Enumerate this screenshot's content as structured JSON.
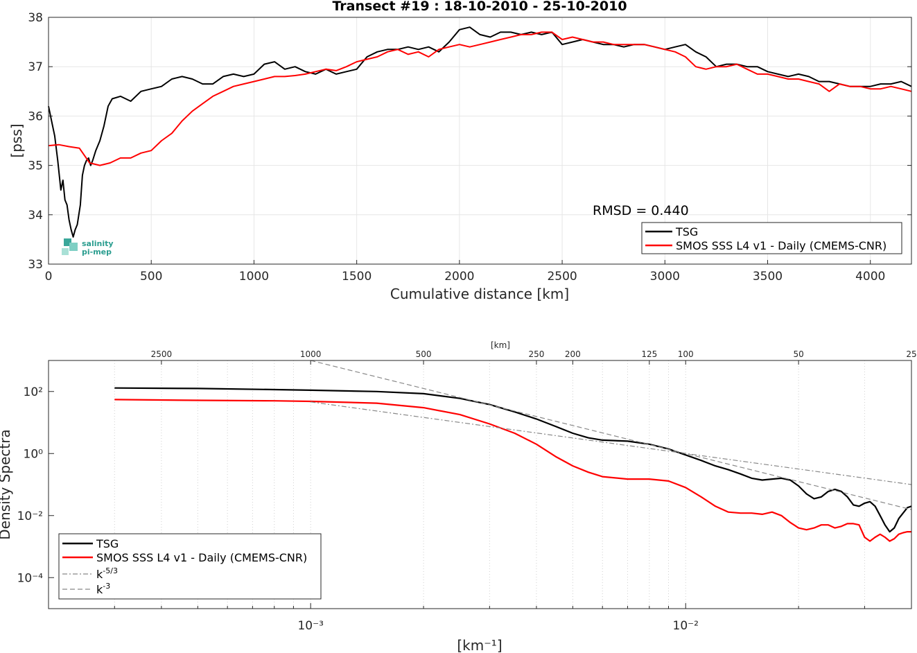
{
  "chart_data": [
    {
      "type": "line",
      "title": "Transect #19 : 18-10-2010 - 25-10-2010",
      "xlabel": "Cumulative distance [km]",
      "ylabel": "[pss]",
      "xlim": [
        0,
        4200
      ],
      "ylim": [
        33,
        38
      ],
      "xticks": [
        "0",
        "500",
        "1000",
        "1500",
        "2000",
        "2500",
        "3000",
        "3500",
        "4000"
      ],
      "yticks": [
        "33",
        "34",
        "35",
        "36",
        "37",
        "38"
      ],
      "grid": true,
      "annotation": "RMSD = 0.440",
      "logo": [
        "salinity",
        "pi-mep"
      ],
      "legend_position": "lower-right",
      "series": [
        {
          "name": "TSG",
          "color": "#000000",
          "x": [
            0,
            15,
            30,
            45,
            60,
            70,
            80,
            90,
            100,
            110,
            120,
            130,
            140,
            155,
            165,
            175,
            185,
            195,
            205,
            215,
            230,
            250,
            270,
            290,
            310,
            350,
            400,
            450,
            500,
            550,
            600,
            650,
            700,
            750,
            800,
            850,
            900,
            950,
            1000,
            1050,
            1100,
            1150,
            1200,
            1250,
            1300,
            1350,
            1400,
            1450,
            1500,
            1550,
            1600,
            1650,
            1700,
            1750,
            1800,
            1850,
            1900,
            1950,
            2000,
            2050,
            2100,
            2150,
            2200,
            2250,
            2300,
            2350,
            2400,
            2450,
            2500,
            2550,
            2600,
            2650,
            2700,
            2750,
            2800,
            2850,
            2900,
            2950,
            3000,
            3050,
            3100,
            3150,
            3200,
            3250,
            3300,
            3350,
            3400,
            3450,
            3500,
            3550,
            3600,
            3650,
            3700,
            3750,
            3800,
            3850,
            3900,
            3950,
            4000,
            4050,
            4100,
            4150,
            4200
          ],
          "values": [
            36.2,
            35.9,
            35.6,
            35.1,
            34.5,
            34.7,
            34.3,
            34.2,
            33.9,
            33.7,
            33.55,
            33.7,
            33.8,
            34.2,
            34.8,
            35.0,
            35.1,
            35.15,
            35.0,
            35.1,
            35.3,
            35.5,
            35.8,
            36.2,
            36.35,
            36.4,
            36.3,
            36.5,
            36.55,
            36.6,
            36.75,
            36.8,
            36.75,
            36.65,
            36.65,
            36.8,
            36.85,
            36.8,
            36.85,
            37.05,
            37.1,
            36.95,
            37.0,
            36.9,
            36.85,
            36.95,
            36.85,
            36.9,
            36.95,
            37.2,
            37.3,
            37.35,
            37.35,
            37.4,
            37.35,
            37.4,
            37.3,
            37.5,
            37.75,
            37.8,
            37.65,
            37.6,
            37.7,
            37.7,
            37.65,
            37.7,
            37.65,
            37.7,
            37.45,
            37.5,
            37.55,
            37.5,
            37.45,
            37.45,
            37.4,
            37.45,
            37.45,
            37.4,
            37.35,
            37.4,
            37.45,
            37.3,
            37.2,
            37.0,
            37.05,
            37.05,
            37.0,
            37.0,
            36.9,
            36.85,
            36.8,
            36.85,
            36.8,
            36.7,
            36.7,
            36.65,
            36.6,
            36.6,
            36.6,
            36.65,
            36.65,
            36.7,
            36.6
          ]
        },
        {
          "name": "SMOS SSS L4 v1 - Daily (CMEMS-CNR)",
          "color": "#ff0000",
          "x": [
            0,
            50,
            100,
            150,
            200,
            250,
            300,
            350,
            400,
            450,
            500,
            550,
            600,
            650,
            700,
            750,
            800,
            850,
            900,
            950,
            1000,
            1050,
            1100,
            1150,
            1200,
            1250,
            1300,
            1350,
            1400,
            1450,
            1500,
            1550,
            1600,
            1650,
            1700,
            1750,
            1800,
            1850,
            1900,
            1950,
            2000,
            2050,
            2100,
            2150,
            2200,
            2250,
            2300,
            2350,
            2400,
            2450,
            2500,
            2550,
            2600,
            2650,
            2700,
            2750,
            2800,
            2850,
            2900,
            2950,
            3000,
            3050,
            3100,
            3150,
            3200,
            3250,
            3300,
            3350,
            3400,
            3450,
            3500,
            3550,
            3600,
            3650,
            3700,
            3750,
            3800,
            3850,
            3900,
            3950,
            4000,
            4050,
            4100,
            4150,
            4200
          ],
          "values": [
            35.4,
            35.42,
            35.38,
            35.35,
            35.05,
            35.0,
            35.05,
            35.15,
            35.15,
            35.25,
            35.3,
            35.5,
            35.65,
            35.9,
            36.1,
            36.25,
            36.4,
            36.5,
            36.6,
            36.65,
            36.7,
            36.75,
            36.8,
            36.8,
            36.82,
            36.85,
            36.9,
            36.95,
            36.92,
            37.0,
            37.1,
            37.15,
            37.2,
            37.3,
            37.35,
            37.25,
            37.3,
            37.2,
            37.35,
            37.4,
            37.45,
            37.4,
            37.45,
            37.5,
            37.55,
            37.6,
            37.65,
            37.65,
            37.7,
            37.7,
            37.55,
            37.6,
            37.55,
            37.5,
            37.5,
            37.45,
            37.45,
            37.45,
            37.45,
            37.4,
            37.35,
            37.3,
            37.2,
            37.0,
            36.95,
            37.0,
            37.0,
            37.05,
            36.95,
            36.85,
            36.85,
            36.8,
            36.75,
            36.75,
            36.7,
            36.65,
            36.5,
            36.65,
            36.6,
            36.6,
            36.55,
            36.55,
            36.6,
            36.55,
            36.5
          ]
        }
      ]
    },
    {
      "type": "line",
      "title": "",
      "xlabel": "[km⁻¹]",
      "ylabel": "Density Spectra",
      "top_axis_label": "[km]",
      "x_scale": "log",
      "y_scale": "log",
      "xlim": [
        0.0002,
        0.04
      ],
      "ylim": [
        1e-05,
        1000
      ],
      "xticks": [
        "10⁻³",
        "10⁻²"
      ],
      "yticks": [
        "10⁻⁴",
        "10⁻²",
        "10⁰",
        "10²"
      ],
      "top_ticks": [
        "2500",
        "1000",
        "500",
        "250",
        "200",
        "125",
        "100",
        "50",
        "25"
      ],
      "grid": "x-minor dotted",
      "legend_position": "lower-left",
      "series": [
        {
          "name": "TSG",
          "color": "#000000",
          "x": [
            0.0003,
            0.0005,
            0.0008,
            0.001,
            0.0015,
            0.002,
            0.0025,
            0.003,
            0.0035,
            0.004,
            0.0045,
            0.005,
            0.0055,
            0.006,
            0.007,
            0.008,
            0.009,
            0.01,
            0.011,
            0.012,
            0.013,
            0.014,
            0.015,
            0.016,
            0.017,
            0.018,
            0.019,
            0.02,
            0.021,
            0.022,
            0.023,
            0.024,
            0.025,
            0.026,
            0.027,
            0.028,
            0.029,
            0.03,
            0.031,
            0.032,
            0.033,
            0.034,
            0.035,
            0.036,
            0.037,
            0.038,
            0.039,
            0.04
          ],
          "values": [
            130,
            125,
            115,
            110,
            100,
            85,
            60,
            38,
            22,
            13,
            7.5,
            4.5,
            3.2,
            2.7,
            2.5,
            2.0,
            1.4,
            0.9,
            0.6,
            0.4,
            0.3,
            0.22,
            0.16,
            0.14,
            0.15,
            0.16,
            0.14,
            0.09,
            0.05,
            0.035,
            0.04,
            0.06,
            0.07,
            0.06,
            0.04,
            0.022,
            0.02,
            0.025,
            0.028,
            0.02,
            0.01,
            0.005,
            0.003,
            0.004,
            0.008,
            0.012,
            0.018,
            0.02
          ]
        },
        {
          "name": "SMOS SSS L4 v1 - Daily (CMEMS-CNR)",
          "color": "#ff0000",
          "x": [
            0.0003,
            0.0005,
            0.0008,
            0.001,
            0.0015,
            0.002,
            0.0025,
            0.003,
            0.0035,
            0.004,
            0.0045,
            0.005,
            0.0055,
            0.006,
            0.007,
            0.008,
            0.009,
            0.01,
            0.011,
            0.012,
            0.013,
            0.014,
            0.015,
            0.016,
            0.017,
            0.018,
            0.019,
            0.02,
            0.021,
            0.022,
            0.023,
            0.024,
            0.025,
            0.026,
            0.027,
            0.028,
            0.029,
            0.03,
            0.031,
            0.032,
            0.033,
            0.034,
            0.035,
            0.036,
            0.037,
            0.038,
            0.039,
            0.04
          ],
          "values": [
            55,
            52,
            50,
            48,
            42,
            30,
            18,
            9,
            4.5,
            2.0,
            0.8,
            0.4,
            0.25,
            0.18,
            0.15,
            0.15,
            0.13,
            0.08,
            0.04,
            0.02,
            0.013,
            0.012,
            0.012,
            0.011,
            0.013,
            0.01,
            0.006,
            0.004,
            0.0035,
            0.004,
            0.005,
            0.005,
            0.004,
            0.0045,
            0.0055,
            0.0055,
            0.005,
            0.002,
            0.0015,
            0.002,
            0.0025,
            0.002,
            0.0015,
            0.0018,
            0.0025,
            0.0028,
            0.003,
            0.003
          ]
        },
        {
          "name": "k^-5/3",
          "color": "#888888",
          "dash": "dash-dot",
          "x": [
            0.001,
            0.04
          ],
          "values": [
            46,
            0.1
          ]
        },
        {
          "name": "k^-3",
          "color": "#888888",
          "dash": "dashed",
          "x": [
            0.001,
            0.04
          ],
          "values": [
            1000,
            0.0156
          ]
        }
      ]
    }
  ]
}
